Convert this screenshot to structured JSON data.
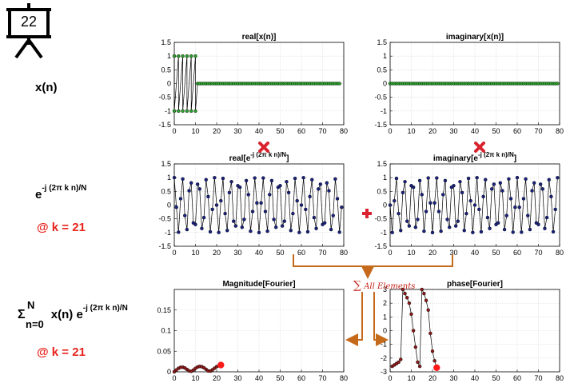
{
  "slide": {
    "number": "22"
  },
  "labels": {
    "xn": "x(n)",
    "exp_base": "e",
    "exp_sup": "-j (2π k n)/N",
    "k_note_1": "@ k = 21",
    "sum_sigma": "Σ",
    "sum_top": "N",
    "sum_bottom": "n=0",
    "sum_body": "x(n) e",
    "sum_sup": "-j (2π k n)/N",
    "k_note_2": "@ k = 21",
    "all_elements": "All Elements",
    "sum_symbol": "∑"
  },
  "colors": {
    "accent_red": "#e8231d",
    "arrow_orange": "#c46a1a",
    "green_marker": "#2ca02c",
    "blue_marker": "#1a237e",
    "dark_red_marker": "#8b1a1a"
  },
  "icons": [
    "presentation-board-icon",
    "multiply-icon",
    "plus-icon",
    "arrow-icon"
  ],
  "chart_data": [
    {
      "id": "real_x",
      "type": "line",
      "title": "real[x(n)]",
      "xlim": [
        0,
        80
      ],
      "ylim": [
        -1.5,
        1.5
      ],
      "xticks": [
        0,
        10,
        20,
        30,
        40,
        50,
        60,
        70,
        80
      ],
      "yticks": [
        1.5,
        1,
        0.5,
        0,
        -0.5,
        -1,
        -1.5
      ],
      "marker_color": "#2ca02c",
      "y": [
        1,
        -1,
        1,
        -1,
        1,
        -1,
        1,
        -1,
        1,
        -1,
        1,
        -1,
        0,
        0,
        0,
        0,
        0,
        0,
        0,
        0,
        0,
        0,
        0,
        0,
        0,
        0,
        0,
        0,
        0,
        0,
        0,
        0,
        0,
        0,
        0,
        0,
        0,
        0,
        0,
        0,
        0,
        0,
        0,
        0,
        0,
        0,
        0,
        0,
        0,
        0,
        0,
        0,
        0,
        0,
        0,
        0,
        0,
        0,
        0,
        0,
        0,
        0,
        0,
        0,
        0,
        0,
        0,
        0,
        0,
        0,
        0,
        0,
        0,
        0,
        0,
        0,
        0,
        0,
        0,
        0
      ],
      "x": [
        0,
        0,
        2,
        2,
        4,
        4,
        6,
        6,
        8,
        8,
        10,
        10,
        11,
        12,
        13,
        14,
        15,
        16,
        17,
        18,
        19,
        20,
        21,
        22,
        23,
        24,
        25,
        26,
        27,
        28,
        29,
        30,
        31,
        32,
        33,
        34,
        35,
        36,
        37,
        38,
        39,
        40,
        41,
        42,
        43,
        44,
        45,
        46,
        47,
        48,
        49,
        50,
        51,
        52,
        53,
        54,
        55,
        56,
        57,
        58,
        59,
        60,
        61,
        62,
        63,
        64,
        65,
        66,
        67,
        68,
        69,
        70,
        71,
        72,
        73,
        74,
        75,
        76,
        77,
        78
      ]
    },
    {
      "id": "imag_x",
      "type": "line",
      "title": "imaginary[x(n)]",
      "xlim": [
        0,
        80
      ],
      "ylim": [
        -1.5,
        1.5
      ],
      "xticks": [
        0,
        10,
        20,
        30,
        40,
        50,
        60,
        70,
        80
      ],
      "yticks": [
        1.5,
        1,
        0.5,
        0,
        -0.5,
        -1,
        -1.5
      ],
      "marker_color": "#2ca02c",
      "zero_series_count": 80
    },
    {
      "id": "real_exp",
      "type": "line",
      "title": "real[e",
      "title_sup": "-j (2π k n)/N",
      "title_end": "]",
      "xlim": [
        0,
        80
      ],
      "ylim": [
        -1.5,
        1.5
      ],
      "xticks": [
        0,
        10,
        20,
        30,
        40,
        50,
        60,
        70,
        80
      ],
      "yticks": [
        1.5,
        1,
        0.5,
        0,
        -0.5,
        -1,
        -1.5
      ],
      "marker_color": "#1a237e",
      "k": 21,
      "N": 80,
      "fn": "cos",
      "count": 80
    },
    {
      "id": "imag_exp",
      "type": "line",
      "title": "imaginary[e",
      "title_sup": "-j (2π k n)/N",
      "title_end": "]",
      "xlim": [
        0,
        80
      ],
      "ylim": [
        -1.5,
        1.5
      ],
      "xticks": [
        0,
        10,
        20,
        30,
        40,
        50,
        60,
        70,
        80
      ],
      "yticks": [
        1.5,
        1,
        0.5,
        0,
        -0.5,
        -1,
        -1.5
      ],
      "marker_color": "#1a237e",
      "k": 21,
      "N": 80,
      "fn": "-sin",
      "count": 80
    },
    {
      "id": "magnitude",
      "type": "line",
      "title": "Magnitude[Fourier]",
      "xlim": [
        0,
        80
      ],
      "ylim": [
        0,
        0.2
      ],
      "xticks": [
        0,
        10,
        20,
        30,
        40,
        50,
        60,
        70,
        80
      ],
      "yticks": [
        0.15,
        0.1,
        0.05,
        0
      ],
      "marker_color": "#8b1a1a",
      "x": [
        0,
        1,
        2,
        3,
        4,
        5,
        6,
        7,
        8,
        9,
        10,
        11,
        12,
        13,
        14,
        15,
        16,
        17,
        18,
        19,
        20,
        21,
        22
      ],
      "y": [
        0,
        0.0045,
        0.0085,
        0.0109,
        0.0112,
        0.0093,
        0.0058,
        0.0021,
        0.0012,
        0.0042,
        0.0084,
        0.0117,
        0.0131,
        0.0124,
        0.0098,
        0.0061,
        0.0022,
        0.0018,
        0.0048,
        0.0087,
        0.0125,
        0.0146,
        0.0165
      ],
      "highlight_index": 22
    },
    {
      "id": "phase",
      "type": "line",
      "title": "phase[Fourier]",
      "xlim": [
        0,
        80
      ],
      "ylim": [
        -3,
        3
      ],
      "xticks": [
        0,
        10,
        20,
        30,
        40,
        50,
        60,
        70,
        80
      ],
      "yticks": [
        3,
        2,
        1,
        0,
        -1,
        -2,
        -3
      ],
      "marker_color": "#8b1a1a",
      "x": [
        1,
        2,
        3,
        4,
        5,
        6,
        7,
        8,
        9,
        10,
        11,
        12,
        13,
        14,
        15,
        16,
        17,
        18,
        19,
        20,
        21,
        22
      ],
      "y": [
        -2.6,
        -2.5,
        -2.4,
        -2.3,
        -2.1,
        3.0,
        2.7,
        2.4,
        2.0,
        1.2,
        0.0,
        -1.2,
        -2.3,
        -2.6,
        3.0,
        2.7,
        2.2,
        1.5,
        -0.2,
        -1.5,
        -2.2,
        -2.7
      ],
      "highlight_index": 21
    }
  ]
}
